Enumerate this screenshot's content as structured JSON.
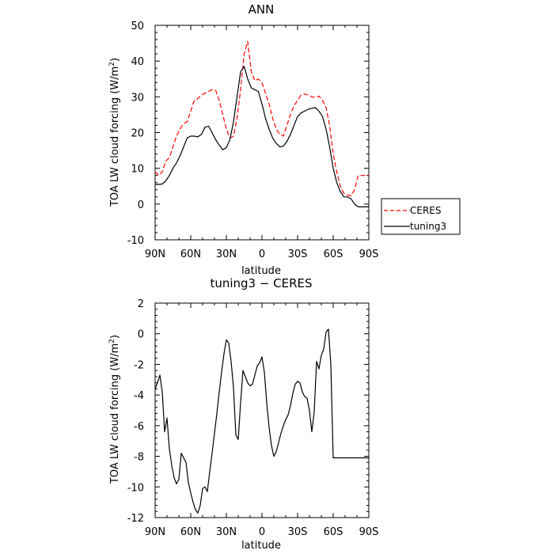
{
  "chart_data": [
    {
      "type": "line",
      "title": "ANN",
      "xlabel": "latitude",
      "ylabel": "TOA LW cloud forcing (W/m²)",
      "ylabel_main": "TOA LW cloud forcing (W/m",
      "ylabel_sup": "2",
      "ylabel_end": ")",
      "xlim": [
        90,
        -90
      ],
      "ylim": [
        -10,
        50
      ],
      "x_ticks": [
        90,
        60,
        30,
        0,
        -30,
        -60,
        -90
      ],
      "x_tick_labels": [
        "90N",
        "60N",
        "30N",
        "0",
        "30S",
        "60S",
        "90S"
      ],
      "y_ticks": [
        -10,
        0,
        10,
        20,
        30,
        40,
        50
      ],
      "y_tick_labels": [
        "-10",
        "0",
        "10",
        "20",
        "30",
        "40",
        "50"
      ],
      "legend_position": "right",
      "series": [
        {
          "name": "CERES",
          "color": "#ff0000",
          "dash": "dashed",
          "x": [
            90,
            87,
            84,
            81,
            78,
            75,
            72,
            69,
            66,
            63,
            60,
            57,
            54,
            51,
            48,
            45,
            42,
            39,
            36,
            33,
            30,
            27,
            24,
            21,
            18,
            15,
            12,
            9,
            6,
            3,
            0,
            -3,
            -6,
            -9,
            -12,
            -15,
            -18,
            -21,
            -24,
            -27,
            -30,
            -33,
            -36,
            -39,
            -42,
            -45,
            -48,
            -51,
            -54,
            -57,
            -60,
            -63,
            -66,
            -69,
            -72,
            -75,
            -78,
            -81,
            -84,
            -87,
            -90
          ],
          "y": [
            9,
            8,
            9,
            12,
            13,
            16,
            19,
            21,
            22.5,
            23,
            26,
            29,
            29.5,
            30.5,
            31,
            31.5,
            32,
            31.8,
            29,
            25,
            21,
            18.5,
            19,
            24,
            32,
            42,
            45.5,
            37,
            34.5,
            35,
            34,
            31,
            28,
            24,
            21,
            19.5,
            19,
            22,
            25,
            27.5,
            29,
            30.5,
            30.8,
            30.5,
            30,
            29.8,
            30.2,
            29,
            27,
            22,
            14,
            9,
            5,
            3,
            2.5,
            2.3,
            4,
            8,
            8,
            8,
            8
          ]
        },
        {
          "name": "tuning3",
          "color": "#000000",
          "dash": "solid",
          "x": [
            90,
            87,
            84,
            81,
            78,
            75,
            72,
            69,
            66,
            63,
            60,
            57,
            54,
            51,
            48,
            45,
            42,
            39,
            36,
            33,
            30,
            27,
            24,
            21,
            18,
            15,
            12,
            9,
            6,
            3,
            0,
            -3,
            -6,
            -9,
            -12,
            -15,
            -18,
            -21,
            -24,
            -27,
            -30,
            -33,
            -36,
            -39,
            -42,
            -45,
            -48,
            -51,
            -54,
            -57,
            -60,
            -63,
            -66,
            -69,
            -72,
            -75,
            -78,
            -81,
            -84,
            -87,
            -90
          ],
          "y": [
            5.5,
            5.5,
            5.6,
            6.5,
            8,
            10,
            11.5,
            13.5,
            16,
            18.5,
            19,
            19,
            18.8,
            19.5,
            21.5,
            21.8,
            20,
            18,
            16.5,
            15.2,
            15.8,
            18,
            23,
            30,
            37,
            38.5,
            35,
            32.5,
            32,
            31.5,
            28,
            24,
            21,
            18.5,
            17,
            16,
            16.2,
            17.5,
            19.5,
            22,
            24.5,
            25.5,
            26,
            26.5,
            26.8,
            27,
            26,
            24.5,
            21,
            16,
            10,
            6,
            3.5,
            2,
            2,
            1.5,
            0,
            -0.8,
            -0.8,
            -0.8,
            -0.8
          ]
        }
      ]
    },
    {
      "type": "line",
      "title": "tuning3 − CERES",
      "xlabel": "latitude",
      "ylabel": "TOA LW cloud forcing (W/m²)",
      "ylabel_main": "TOA LW cloud forcing (W/m",
      "ylabel_sup": "2",
      "ylabel_end": ")",
      "xlim": [
        90,
        -90
      ],
      "ylim": [
        -12,
        2
      ],
      "x_ticks": [
        90,
        60,
        30,
        0,
        -30,
        -60,
        -90
      ],
      "x_tick_labels": [
        "90N",
        "60N",
        "30N",
        "0",
        "30S",
        "60S",
        "90S"
      ],
      "y_ticks": [
        -12,
        -10,
        -8,
        -6,
        -4,
        -2,
        0,
        2
      ],
      "y_tick_labels": [
        "-12",
        "-10",
        "-8",
        "-6",
        "-4",
        "-2",
        "0",
        "2"
      ],
      "series": [
        {
          "color": "#000000",
          "dash": "solid",
          "x": [
            90,
            88,
            86,
            84,
            82,
            80,
            78,
            76,
            74,
            72,
            70,
            68,
            66,
            64,
            62,
            60,
            58,
            56,
            54,
            52,
            50,
            48,
            46,
            44,
            42,
            40,
            38,
            36,
            34,
            32,
            30,
            28,
            26,
            24,
            22,
            20,
            18,
            16,
            14,
            12,
            10,
            8,
            6,
            4,
            2,
            0,
            -2,
            -4,
            -6,
            -8,
            -10,
            -12,
            -14,
            -16,
            -18,
            -20,
            -22,
            -24,
            -26,
            -28,
            -30,
            -32,
            -34,
            -36,
            -38,
            -40,
            -42,
            -44,
            -46,
            -48,
            -50,
            -52,
            -54,
            -56,
            -58,
            -60,
            -62,
            -64,
            -66,
            -68,
            -70,
            -72,
            -74,
            -76,
            -78,
            -80,
            -82,
            -84,
            -86,
            -88,
            -90
          ],
          "y": [
            -3.6,
            -3.2,
            -2.7,
            -3.8,
            -6.4,
            -5.5,
            -7.5,
            -8.6,
            -9.4,
            -9.8,
            -9.5,
            -7.8,
            -8.1,
            -8.4,
            -9.7,
            -10.4,
            -11.0,
            -11.5,
            -11.7,
            -11.2,
            -10.1,
            -10.0,
            -10.3,
            -9.0,
            -7.8,
            -6.5,
            -5.2,
            -3.8,
            -2.5,
            -1.3,
            -0.4,
            -0.6,
            -1.8,
            -3.5,
            -6.6,
            -6.9,
            -4.5,
            -2.4,
            -2.8,
            -3.2,
            -3.4,
            -3.3,
            -2.7,
            -2.1,
            -1.9,
            -1.5,
            -2.5,
            -4.5,
            -6.1,
            -7.3,
            -8.0,
            -7.7,
            -7.1,
            -6.5,
            -6.0,
            -5.6,
            -5.3,
            -4.7,
            -3.9,
            -3.3,
            -3.1,
            -3.2,
            -3.8,
            -4.1,
            -4.2,
            -5.0,
            -6.4,
            -5.1,
            -1.8,
            -2.3,
            -1.4,
            -1.0,
            0.1,
            0.3,
            -2.0,
            -8.1,
            -8.1,
            -8.1,
            -8.1,
            -8.1,
            -8.1,
            -8.1,
            -8.1,
            -8.1,
            -8.1,
            -8.1,
            -8.1,
            -8.1,
            -8.1,
            -8.1,
            -8.1
          ]
        }
      ]
    }
  ]
}
